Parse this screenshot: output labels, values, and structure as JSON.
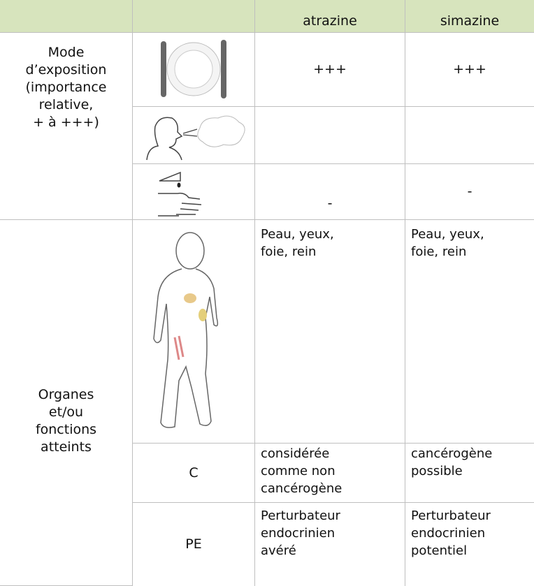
{
  "header": {
    "columns": [
      "atrazine",
      "simazine"
    ]
  },
  "exposure": {
    "label": [
      "Mode",
      "d’exposition",
      "(importance",
      "relative,",
      "+ à +++)"
    ],
    "ingestion": [
      "+++",
      "+++"
    ],
    "dermal": [
      "-",
      "-"
    ]
  },
  "organs": {
    "label": [
      "Organes",
      "et/ou",
      "fonctions",
      "atteints"
    ],
    "targets": [
      [
        "Peau, yeux,",
        "foie, rein"
      ],
      [
        "Peau, yeux,",
        "foie, rein"
      ]
    ],
    "carcinogen": {
      "label": "C",
      "cells": [
        [
          "considérée",
          "comme non",
          "cancérogène"
        ],
        [
          "cancérogène",
          "possible"
        ]
      ]
    },
    "endocrine": {
      "label": "PE",
      "cells": [
        [
          "Perturbateur",
          "endocrinien",
          "avéré"
        ],
        [
          "Perturbateur",
          "endocrinien",
          "potentiel"
        ]
      ]
    }
  }
}
